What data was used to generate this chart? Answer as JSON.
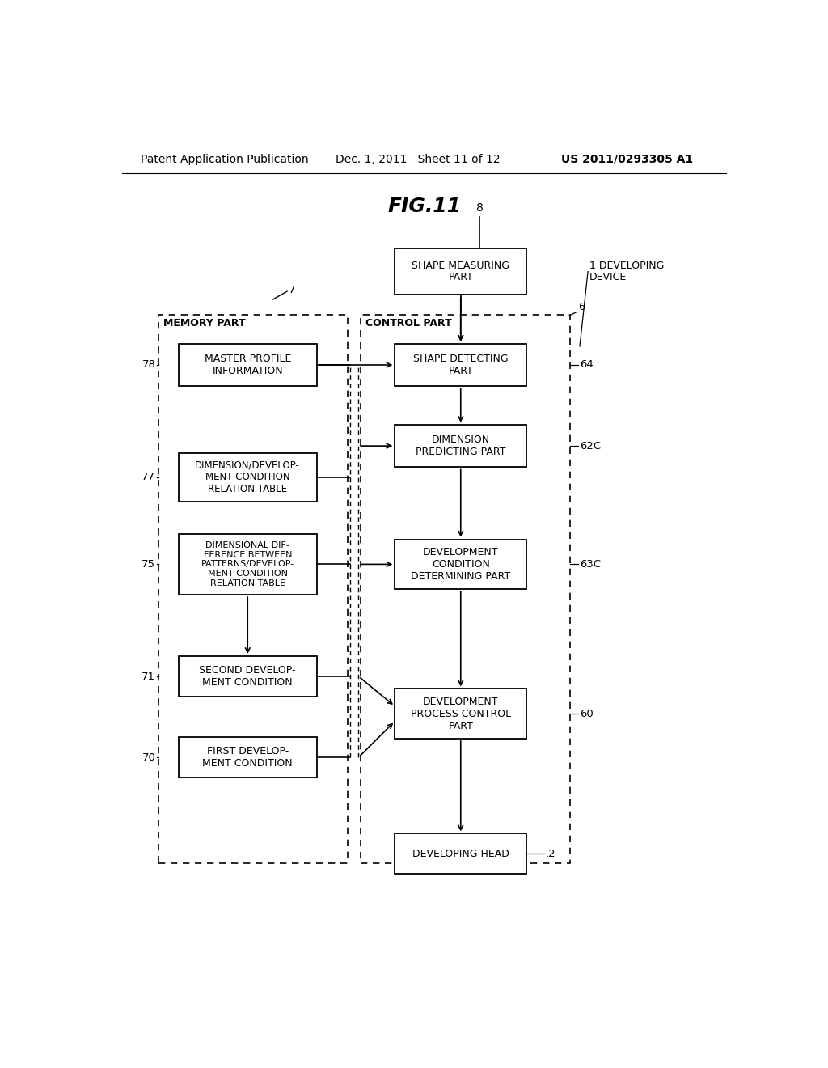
{
  "title": "FIG.11",
  "header_left": "Patent Application Publication",
  "header_mid": "Dec. 1, 2011   Sheet 11 of 12",
  "header_right": "US 2011/0293305 A1",
  "bg_color": "#ffffff",
  "fig_w": 10.24,
  "fig_h": 13.2,
  "dpi": 100
}
